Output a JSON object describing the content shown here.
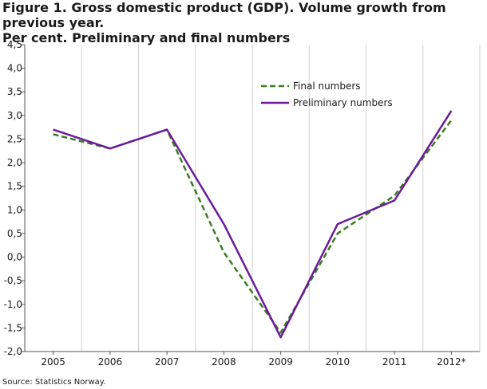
{
  "colors": {
    "final": "#3a7d1e",
    "preliminary": "#6a1b9a",
    "grid": "#d0d0d0",
    "axis": "#555555"
  },
  "title_line1": "Figure 1. Gross domestic product (GDP). Volume growth from previous year.",
  "title_line2": "Per cent. Preliminary and final numbers",
  "source": "Source: Statistics Norway.",
  "chart_data": {
    "type": "line",
    "categories": [
      "2005",
      "2006",
      "2007",
      "2008",
      "2009",
      "2010",
      "2011",
      "2012*"
    ],
    "ylim": [
      -2.0,
      4.5
    ],
    "yticks": [
      4.5,
      4.0,
      3.5,
      3.0,
      2.5,
      2.0,
      1.5,
      1.0,
      0.5,
      0.0,
      -0.5,
      -1.0,
      -1.5,
      -2.0
    ],
    "ytick_labels": [
      "4,5",
      "4,0",
      "3,5",
      "3,0",
      "2,5",
      "2,0",
      "1,5",
      "1,0",
      "0,5",
      "0,0",
      "-0,5",
      "-1,0",
      "-1,5",
      "-2,0"
    ],
    "grid": "vertical",
    "legend_position": "top-right",
    "series": [
      {
        "name": "Final numbers",
        "style": "dashed",
        "values": [
          2.6,
          2.3,
          2.7,
          0.1,
          -1.6,
          0.5,
          1.3,
          2.9
        ]
      },
      {
        "name": "Preliminary numbers",
        "style": "solid",
        "values": [
          2.7,
          2.3,
          2.7,
          0.7,
          -1.7,
          0.7,
          1.2,
          3.1
        ]
      }
    ]
  }
}
